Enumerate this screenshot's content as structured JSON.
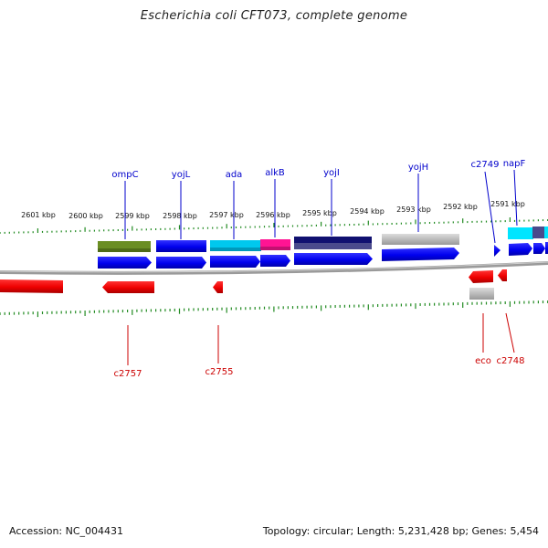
{
  "title": "Escherichia coli CFT073, complete genome",
  "footer": {
    "accession": "Accession: NC_004431",
    "info": "Topology: circular; Length: 5,231,428 bp; Genes: 5,454"
  },
  "colors": {
    "forward_label": "#0000cc",
    "reverse_label": "#cc0000",
    "ticks": "#228b22",
    "backbone": "#808080"
  },
  "scale_ticks": [
    "2601 kbp",
    "2600 kbp",
    "2599 kbp",
    "2598 kbp",
    "2597 kbp",
    "2596 kbp",
    "2595 kbp",
    "2594 kbp",
    "2593 kbp",
    "2592 kbp",
    "2591 kbp"
  ],
  "forward_gene_labels": [
    "ompC",
    "yojL",
    "ada",
    "alkB",
    "yojI",
    "yojH",
    "c2749",
    "napF"
  ],
  "reverse_gene_labels": [
    "c2757",
    "c2755",
    "eco",
    "c2748"
  ]
}
